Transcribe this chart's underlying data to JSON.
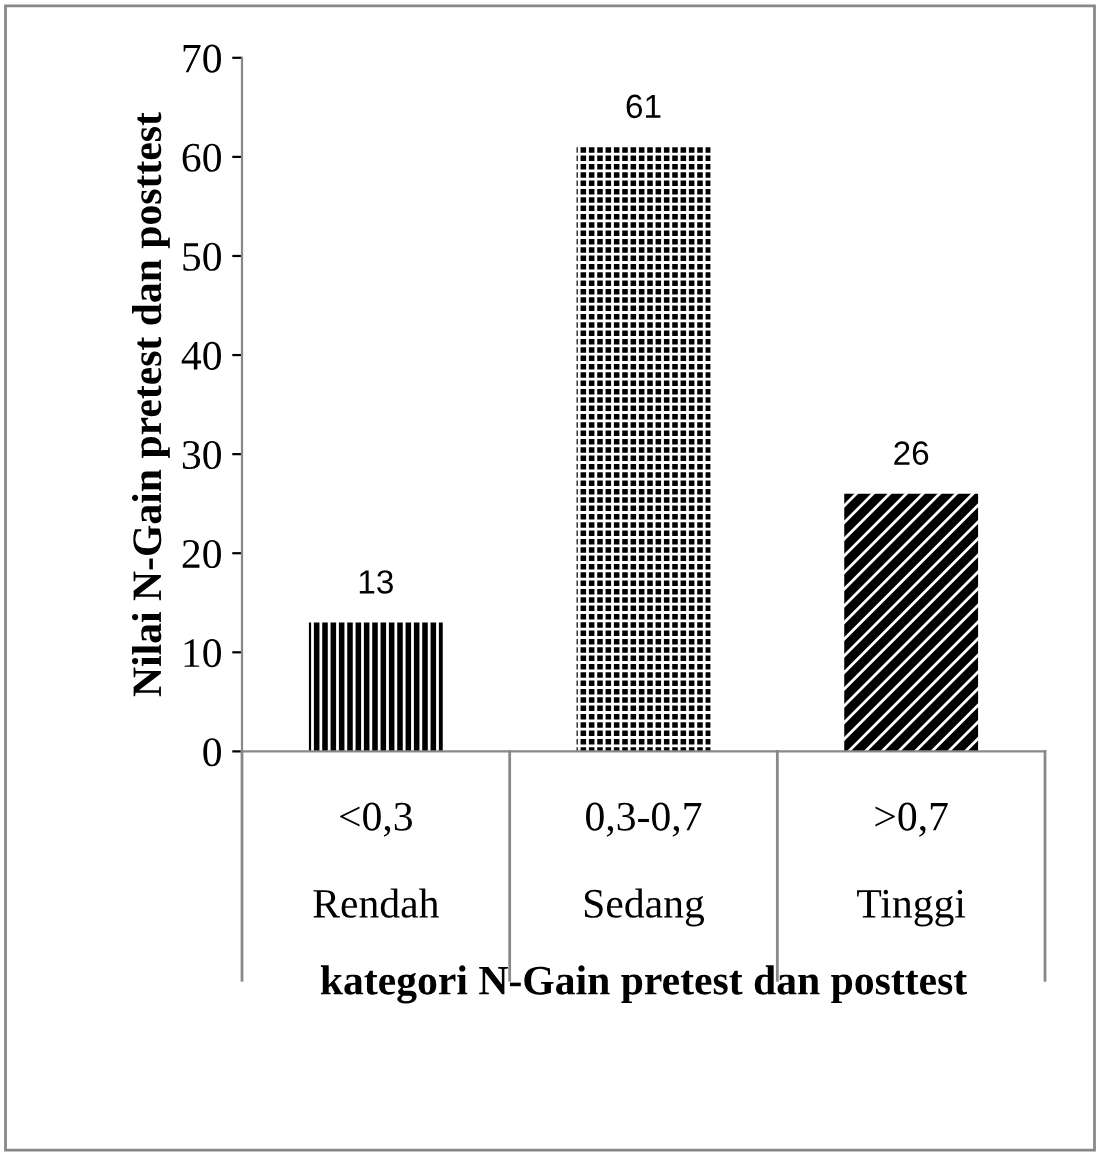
{
  "chart_data": {
    "type": "bar",
    "xlabel": "kategori N-Gain pretest dan posttest",
    "ylabel": "Nilai N-Gain pretest dan posttest",
    "categories": [
      "<0,3\n\nRendah",
      "0,3-0,7\n\nSedang",
      ">0,7\n\nTinggi"
    ],
    "values": [
      13,
      61,
      26
    ],
    "color": "#000000",
    "ylim": [
      0,
      70
    ],
    "yticks": [
      0,
      10,
      20,
      30,
      40,
      50,
      60,
      70
    ],
    "data_labels": true,
    "grid": false,
    "legend": false
  }
}
